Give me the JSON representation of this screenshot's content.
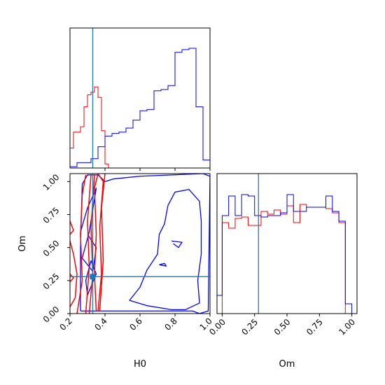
{
  "chart_data": {
    "type": "corner",
    "parameters": [
      "H0",
      "Om"
    ],
    "truth": {
      "H0": 0.33,
      "Om": 0.28,
      "color": "#1f77b4"
    },
    "series_colors": {
      "red": "#ff0000",
      "blue": "#0000ff"
    },
    "axes": {
      "h0_hist": {
        "xlim": [
          0.2,
          1.0
        ],
        "xticks": [
          0.4,
          0.6,
          0.8,
          1.0
        ]
      },
      "joint": {
        "xlim": [
          0.2,
          1.0
        ],
        "ylim": [
          0.0,
          1.06
        ],
        "xticks": [
          "0.2",
          "0.4",
          "0.6",
          "0.8",
          "1.0"
        ],
        "yticks": [
          "0.00",
          "0.25",
          "0.50",
          "0.75",
          "1.00"
        ],
        "xlabel": "H0",
        "ylabel": "Om"
      },
      "om_hist": {
        "xlim": [
          -0.04,
          1.04
        ],
        "xticks": [
          "0.00",
          "0.25",
          "0.50",
          "0.75",
          "1.00"
        ],
        "xlabel": "Om"
      }
    },
    "h0_hist": {
      "red": {
        "edges": [
          0.2,
          0.22,
          0.24,
          0.26,
          0.28,
          0.3,
          0.32,
          0.34,
          0.36,
          0.38,
          0.4,
          0.42
        ],
        "counts": [
          0.15,
          0.27,
          0.27,
          0.31,
          0.46,
          0.55,
          0.57,
          0.61,
          0.53,
          0.28,
          0.03
        ]
      },
      "blue": {
        "edges": [
          0.2,
          0.24,
          0.28,
          0.32,
          0.36,
          0.4,
          0.44,
          0.48,
          0.52,
          0.56,
          0.6,
          0.64,
          0.68,
          0.72,
          0.76,
          0.8,
          0.84,
          0.88,
          0.92,
          0.96,
          1.0
        ],
        "counts": [
          0.01,
          0.04,
          0.04,
          0.07,
          0.16,
          0.24,
          0.26,
          0.27,
          0.3,
          0.36,
          0.43,
          0.44,
          0.58,
          0.59,
          0.62,
          0.87,
          0.89,
          0.9,
          0.46,
          0.06
        ]
      }
    },
    "om_hist": {
      "red": {
        "edges": [
          0.0,
          0.025,
          0.05,
          0.1,
          0.15,
          0.2,
          0.25,
          0.3,
          0.35,
          0.4,
          0.45,
          0.5,
          0.55,
          0.6,
          0.65,
          0.7,
          0.75,
          0.8,
          0.85,
          0.9,
          0.95,
          0.97
        ],
        "counts": [
          0.65,
          0.65,
          0.61,
          0.68,
          0.69,
          0.63,
          0.63,
          0.73,
          0.71,
          0.74,
          0.71,
          0.77,
          0.65,
          0.78,
          0.76,
          0.76,
          0.76,
          0.75,
          0.72,
          0.65,
          0.0
        ]
      },
      "blue": {
        "edges": [
          -0.04,
          0.0,
          0.05,
          0.1,
          0.15,
          0.2,
          0.25,
          0.3,
          0.35,
          0.4,
          0.45,
          0.5,
          0.55,
          0.6,
          0.65,
          0.7,
          0.75,
          0.8,
          0.85,
          0.9,
          0.95,
          1.0,
          1.04
        ],
        "counts": [
          0.13,
          0.7,
          0.84,
          0.7,
          0.85,
          0.84,
          0.7,
          0.69,
          0.7,
          0.7,
          0.72,
          0.85,
          0.73,
          0.73,
          0.76,
          0.76,
          0.76,
          0.84,
          0.73,
          0.66,
          0.07,
          0.0
        ]
      }
    },
    "contours": [
      {
        "color": "blue",
        "points": [
          [
            0.26,
            0.02
          ],
          [
            0.9,
            0.02
          ],
          [
            0.94,
            0.0
          ],
          [
            0.99,
            0.02
          ],
          [
            1.0,
            1.04
          ],
          [
            0.96,
            1.06
          ],
          [
            0.6,
            1.04
          ],
          [
            0.45,
            1.02
          ],
          [
            0.4,
            1.0
          ],
          [
            0.36,
            1.05
          ],
          [
            0.3,
            1.05
          ],
          [
            0.27,
            0.98
          ],
          [
            0.26,
            0.5
          ],
          [
            0.26,
            0.02
          ]
        ]
      },
      {
        "color": "blue",
        "points": [
          [
            0.78,
            0.03
          ],
          [
            0.86,
            0.03
          ],
          [
            0.94,
            0.08
          ],
          [
            0.93,
            0.25
          ],
          [
            0.95,
            0.45
          ],
          [
            0.95,
            0.7
          ],
          [
            0.94,
            0.85
          ],
          [
            0.88,
            0.94
          ],
          [
            0.8,
            0.92
          ],
          [
            0.76,
            0.82
          ],
          [
            0.74,
            0.68
          ],
          [
            0.71,
            0.6
          ],
          [
            0.7,
            0.45
          ],
          [
            0.64,
            0.33
          ],
          [
            0.6,
            0.2
          ],
          [
            0.54,
            0.1
          ],
          [
            0.64,
            0.06
          ],
          [
            0.78,
            0.03
          ]
        ]
      },
      {
        "color": "blue",
        "points": [
          [
            0.26,
            0.62
          ],
          [
            0.3,
            0.8
          ],
          [
            0.35,
            0.95
          ],
          [
            0.31,
            0.62
          ],
          [
            0.27,
            0.42
          ],
          [
            0.33,
            0.32
          ],
          [
            0.35,
            0.5
          ],
          [
            0.3,
            0.6
          ]
        ]
      },
      {
        "color": "blue",
        "points": [
          [
            0.3,
            0.14
          ],
          [
            0.35,
            0.3
          ],
          [
            0.32,
            0.4
          ],
          [
            0.29,
            0.25
          ],
          [
            0.3,
            0.14
          ]
        ]
      },
      {
        "color": "blue",
        "points": [
          [
            0.71,
            0.37
          ],
          [
            0.75,
            0.36
          ],
          [
            0.74,
            0.38
          ],
          [
            0.71,
            0.37
          ]
        ]
      },
      {
        "color": "blue",
        "points": [
          [
            0.78,
            0.55
          ],
          [
            0.84,
            0.54
          ],
          [
            0.82,
            0.5
          ],
          [
            0.79,
            0.53
          ]
        ]
      },
      {
        "color": "red",
        "points": [
          [
            0.2,
            0.05
          ],
          [
            0.23,
            0.12
          ],
          [
            0.24,
            0.3
          ],
          [
            0.22,
            0.45
          ],
          [
            0.2,
            0.55
          ]
        ]
      },
      {
        "color": "red",
        "points": [
          [
            0.24,
            0.0
          ],
          [
            0.27,
            0.25
          ],
          [
            0.26,
            0.6
          ],
          [
            0.27,
            0.9
          ],
          [
            0.29,
            1.05
          ]
        ]
      },
      {
        "color": "red",
        "points": [
          [
            0.29,
            0.0
          ],
          [
            0.31,
            0.35
          ],
          [
            0.3,
            0.7
          ],
          [
            0.32,
            1.05
          ]
        ]
      },
      {
        "color": "red",
        "points": [
          [
            0.31,
            0.0
          ],
          [
            0.33,
            0.3
          ],
          [
            0.32,
            0.65
          ],
          [
            0.34,
            1.05
          ]
        ]
      },
      {
        "color": "red",
        "points": [
          [
            0.36,
            0.02
          ],
          [
            0.38,
            0.3
          ],
          [
            0.37,
            0.65
          ],
          [
            0.39,
            1.0
          ],
          [
            0.36,
            1.06
          ],
          [
            0.34,
            0.95
          ],
          [
            0.35,
            0.6
          ],
          [
            0.34,
            0.3
          ],
          [
            0.35,
            0.02
          ]
        ]
      },
      {
        "color": "red",
        "points": [
          [
            0.37,
            0.02
          ],
          [
            0.39,
            0.4
          ],
          [
            0.38,
            0.8
          ],
          [
            0.4,
            1.06
          ]
        ]
      },
      {
        "color": "red",
        "points": [
          [
            0.2,
            0.7
          ],
          [
            0.22,
            0.63
          ],
          [
            0.2,
            0.6
          ]
        ]
      },
      {
        "color": "red",
        "points": [
          [
            0.2,
            0.3
          ],
          [
            0.22,
            0.27
          ],
          [
            0.2,
            0.24
          ]
        ]
      }
    ]
  }
}
